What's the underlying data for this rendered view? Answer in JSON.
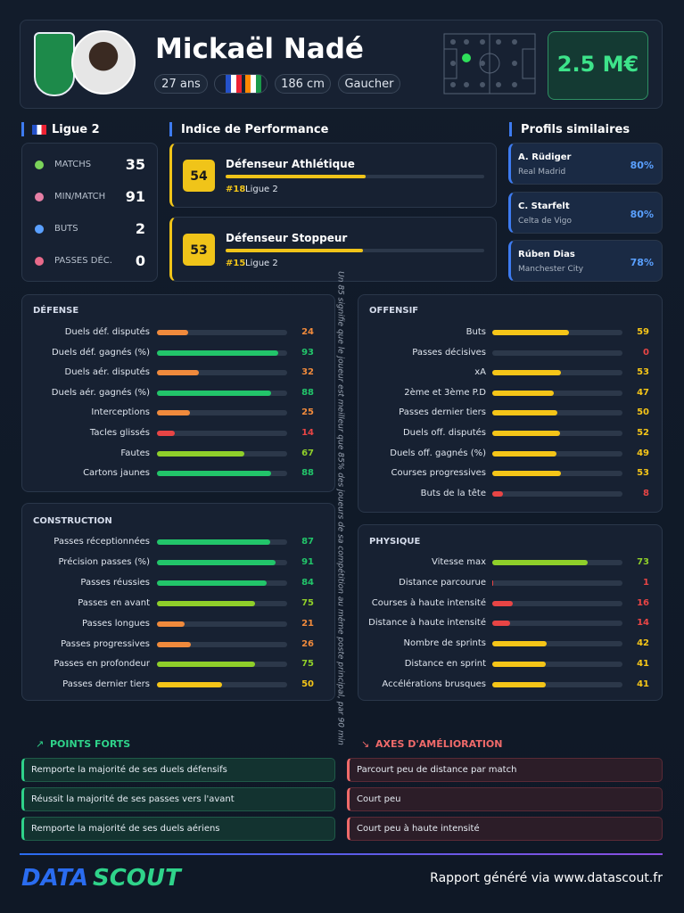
{
  "header": {
    "name": "Mickaël Nadé",
    "tags": [
      "27 ans",
      "186 cm",
      "Gaucher"
    ],
    "market_value": "2.5 M€"
  },
  "league": {
    "title": "Ligue 2",
    "stats": [
      {
        "label": "MATCHS",
        "value": 35
      },
      {
        "label": "MIN/MATCH",
        "value": 91
      },
      {
        "label": "BUTS",
        "value": 2
      },
      {
        "label": "PASSES DÉC.",
        "value": 0
      }
    ]
  },
  "performance": {
    "title": "Indice de Performance",
    "items": [
      {
        "score": 54,
        "name": "Défenseur Athlétique",
        "rank": "#18",
        "league": "Ligue 2"
      },
      {
        "score": 53,
        "name": "Défenseur Stoppeur",
        "rank": "#15",
        "league": "Ligue 2"
      }
    ]
  },
  "similar": {
    "title": "Profils similaires",
    "items": [
      {
        "name": "A. Rüdiger",
        "club": "Real Madrid",
        "match": "80%"
      },
      {
        "name": "C. Starfelt",
        "club": "Celta de Vigo",
        "match": "80%"
      },
      {
        "name": "Rúben Dias",
        "club": "Manchester City",
        "match": "78%"
      }
    ]
  },
  "defense": {
    "title": "DÉFENSE",
    "rows": [
      [
        "Duels déf. disputés",
        24
      ],
      [
        "Duels déf. gagnés (%)",
        93
      ],
      [
        "Duels aér. disputés",
        32
      ],
      [
        "Duels aér. gagnés (%)",
        88
      ],
      [
        "Interceptions",
        25
      ],
      [
        "Tacles glissés",
        14
      ],
      [
        "Fautes",
        67
      ],
      [
        "Cartons jaunes",
        88
      ]
    ]
  },
  "construction": {
    "title": "CONSTRUCTION",
    "rows": [
      [
        "Passes réceptionnées",
        87
      ],
      [
        "Précision passes (%)",
        91
      ],
      [
        "Passes réussies",
        84
      ],
      [
        "Passes en avant",
        75
      ],
      [
        "Passes longues",
        21
      ],
      [
        "Passes progressives",
        26
      ],
      [
        "Passes en profondeur",
        75
      ],
      [
        "Passes dernier tiers",
        50
      ]
    ]
  },
  "offensive": {
    "title": "OFFENSIF",
    "rows": [
      [
        "Buts",
        59
      ],
      [
        "Passes décisives",
        0
      ],
      [
        "xA",
        53
      ],
      [
        "2ème et 3ème P.D",
        47
      ],
      [
        "Passes dernier tiers",
        50
      ],
      [
        "Duels off. disputés",
        52
      ],
      [
        "Duels off. gagnés (%)",
        49
      ],
      [
        "Courses progressives",
        53
      ],
      [
        "Buts de la tête",
        8
      ]
    ]
  },
  "physical": {
    "title": "PHYSIQUE",
    "rows": [
      [
        "Vitesse max",
        73
      ],
      [
        "Distance parcourue",
        1
      ],
      [
        "Courses à haute intensité",
        16
      ],
      [
        "Distance à haute intensité",
        14
      ],
      [
        "Nombre de sprints",
        42
      ],
      [
        "Distance en sprint",
        41
      ],
      [
        "Accélérations brusques",
        41
      ]
    ]
  },
  "note": "Un 85 signifie que le joueur est meilleur que 85% des joueurs de sa compétition au même poste principal, par 90 min",
  "strengths": {
    "title": "POINTS FORTS",
    "items": [
      "Remporte la majorité de ses duels défensifs",
      "Réussit la majorité de ses passes vers l'avant",
      "Remporte la majorité de ses duels aériens"
    ]
  },
  "improvements": {
    "title": "AXES D'AMÉLIORATION",
    "items": [
      "Parcourt peu de distance par match",
      "Court peu",
      "Court peu à haute intensité"
    ]
  },
  "footer": {
    "logo": [
      "DATA",
      "SCOUT"
    ],
    "text": "Rapport généré via www.datascout.fr"
  }
}
